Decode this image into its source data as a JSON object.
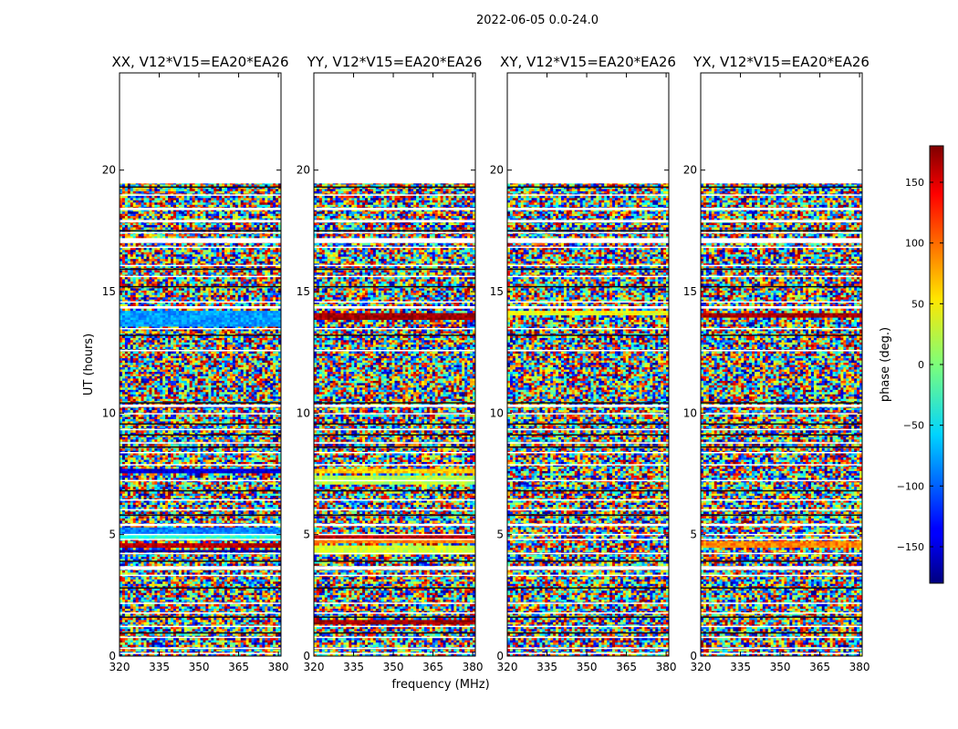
{
  "figure": {
    "suptitle": "2022-06-05 0.0-24.0",
    "xlabel": "frequency (MHz)",
    "ylabel": "UT (hours)"
  },
  "chart_data": {
    "type": "heatmap",
    "x_unit": "MHz",
    "y_unit": "hours",
    "xlim": [
      320,
      381
    ],
    "ylim": [
      0,
      24
    ],
    "xticks": [
      320,
      335,
      350,
      365,
      380
    ],
    "yticks": [
      0,
      5,
      10,
      15,
      20
    ],
    "grid": false,
    "data_extent_ut": [
      0,
      19.5
    ],
    "panels": [
      {
        "title": "XX, V12*V15=EA20*EA26",
        "coherent_bands": [
          {
            "ut": [
              13.6,
              14.2
            ],
            "phase": -80
          },
          {
            "ut": [
              7.55,
              7.7
            ],
            "phase": -150
          },
          {
            "ut": [
              5.05,
              5.25
            ],
            "phase": -90
          },
          {
            "ut": [
              4.85,
              5.0
            ],
            "phase": -30
          },
          {
            "ut": [
              4.45,
              4.6
            ],
            "phase": 160
          },
          {
            "ut": [
              4.25,
              4.4
            ],
            "phase": -170
          }
        ]
      },
      {
        "title": "YY, V12*V15=EA20*EA26",
        "coherent_bands": [
          {
            "ut": [
              13.85,
              14.15
            ],
            "phase": 170
          },
          {
            "ut": [
              7.5,
              7.75
            ],
            "phase": 60
          },
          {
            "ut": [
              7.05,
              7.4
            ],
            "phase": 20
          },
          {
            "ut": [
              4.85,
              5.05
            ],
            "phase": 160
          },
          {
            "ut": [
              4.6,
              4.8
            ],
            "phase": 90
          },
          {
            "ut": [
              4.2,
              4.55
            ],
            "phase": 30
          },
          {
            "ut": [
              1.3,
              1.45
            ],
            "phase": 170
          }
        ]
      },
      {
        "title": "XY, V12*V15=EA20*EA26",
        "coherent_bands": [
          {
            "ut": [
              14.05,
              14.2
            ],
            "phase": 40
          }
        ]
      },
      {
        "title": "YX, V12*V15=EA20*EA26",
        "coherent_bands": [
          {
            "ut": [
              13.95,
              14.1
            ],
            "phase": 170
          },
          {
            "ut": [
              4.5,
              4.7
            ],
            "phase": 90
          }
        ]
      }
    ],
    "flagged_gaps_ut": [
      [
        19.45,
        19.55
      ],
      [
        18.95,
        19.0
      ],
      [
        18.35,
        18.45
      ],
      [
        17.85,
        17.95
      ],
      [
        17.4,
        17.45
      ],
      [
        17.0,
        17.2
      ],
      [
        16.8,
        16.85
      ],
      [
        16.05,
        16.1
      ],
      [
        15.6,
        15.65
      ],
      [
        14.55,
        14.6
      ],
      [
        14.3,
        14.4
      ],
      [
        13.45,
        13.5
      ],
      [
        12.55,
        12.6
      ],
      [
        10.25,
        10.35
      ],
      [
        9.95,
        10.0
      ],
      [
        9.3,
        9.35
      ],
      [
        8.75,
        8.8
      ],
      [
        8.35,
        8.4
      ],
      [
        7.85,
        7.9
      ],
      [
        7.2,
        7.25
      ],
      [
        6.4,
        6.45
      ],
      [
        6.0,
        6.05
      ],
      [
        5.35,
        5.45
      ],
      [
        5.0,
        5.03
      ],
      [
        4.8,
        4.83
      ],
      [
        4.2,
        4.25
      ],
      [
        3.55,
        3.7
      ],
      [
        3.3,
        3.35
      ],
      [
        2.15,
        2.2
      ],
      [
        1.75,
        1.8
      ],
      [
        1.2,
        1.25
      ],
      [
        0.75,
        0.8
      ],
      [
        0.3,
        0.35
      ],
      [
        0.1,
        0.14
      ]
    ],
    "dark_gaps_ut": [
      [
        19.3,
        19.33
      ],
      [
        17.5,
        17.53
      ],
      [
        15.9,
        15.95
      ],
      [
        15.2,
        15.23
      ],
      [
        13.2,
        13.23
      ],
      [
        10.4,
        10.45
      ],
      [
        9.55,
        9.58
      ],
      [
        9.1,
        9.13
      ],
      [
        8.6,
        8.63
      ],
      [
        6.8,
        6.83
      ],
      [
        5.8,
        5.83
      ],
      [
        3.9,
        3.93
      ],
      [
        2.8,
        2.83
      ],
      [
        1.6,
        1.63
      ],
      [
        0.95,
        0.98
      ]
    ],
    "colorbar": {
      "label": "phase (deg.)",
      "range": [
        -180,
        180
      ],
      "ticks": [
        -150,
        -100,
        -50,
        0,
        50,
        100,
        150
      ],
      "tick_labels": [
        "−150",
        "−100",
        "−50",
        "0",
        "50",
        "100",
        "150"
      ],
      "colormap": "jet"
    }
  }
}
